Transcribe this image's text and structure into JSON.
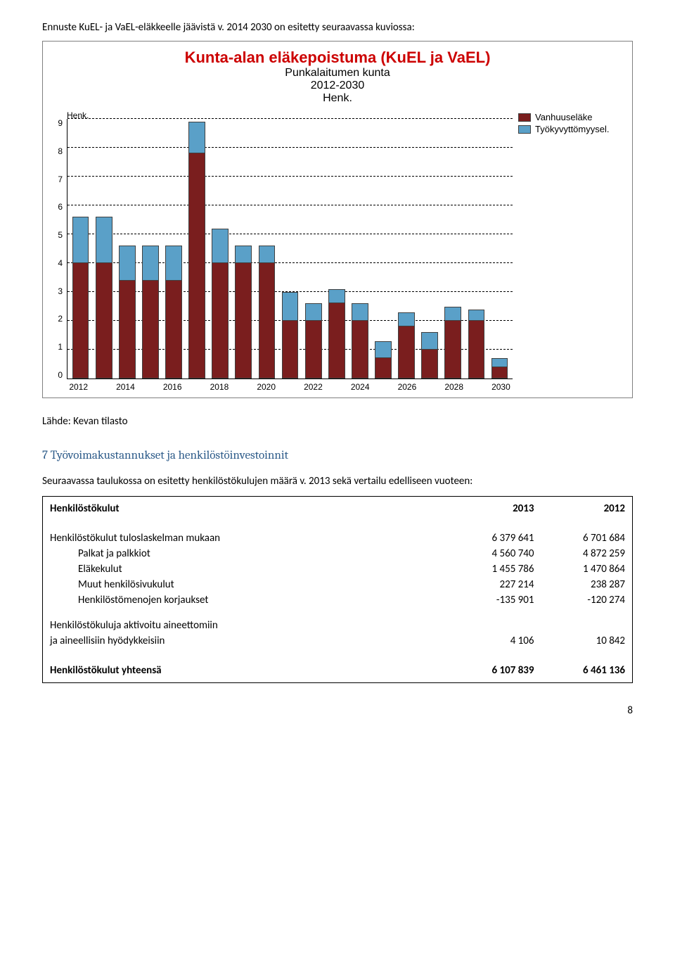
{
  "intro_text": "Ennuste KuEL- ja VaEL-eläkkeelle jäävistä v. 2014 2030 on esitetty seuraavassa kuviossa:",
  "chart": {
    "type": "bar",
    "title_main": "Kunta-alan eläkepoistuma (KuEL ja VaEL)",
    "title_main_color": "#cc0000",
    "title_fontsize": 22,
    "subtitle_1": "Punkalaitumen kunta",
    "subtitle_2": "2012-2030",
    "subtitle_3": "Henk.",
    "y_axis_title": "Henk.",
    "ylim": [
      0,
      9
    ],
    "ytick_step": 1,
    "yticks": [
      9,
      8,
      7,
      6,
      5,
      4,
      3,
      2,
      1,
      0
    ],
    "xticks": [
      "2012",
      "2014",
      "2016",
      "2018",
      "2020",
      "2022",
      "2024",
      "2026",
      "2028",
      "2030"
    ],
    "categories": [
      "2012",
      "2013",
      "2014",
      "2015",
      "2016",
      "2017",
      "2018",
      "2019",
      "2020",
      "2021",
      "2022",
      "2023",
      "2024",
      "2025",
      "2026",
      "2027",
      "2028",
      "2029",
      "2030"
    ],
    "series": [
      {
        "name": "Vanhuuseläke",
        "color": "#7a1e1e",
        "values": [
          4.0,
          4.0,
          3.4,
          3.4,
          3.4,
          7.8,
          4.0,
          4.0,
          4.0,
          2.0,
          2.0,
          2.6,
          2.0,
          0.7,
          1.8,
          1.0,
          2.0,
          2.0,
          0.4
        ]
      },
      {
        "name": "Työkyvyttömyysel.",
        "color": "#5aa0c8",
        "values": [
          1.6,
          1.6,
          1.2,
          1.2,
          1.2,
          1.1,
          1.2,
          0.6,
          0.6,
          1.0,
          0.6,
          0.5,
          0.6,
          0.6,
          0.5,
          0.6,
          0.5,
          0.4,
          0.3
        ]
      }
    ],
    "grid_color": "#000000",
    "background_color": "#ffffff",
    "bar_width": 0.72
  },
  "source_text": "Lähde: Kevan tilasto",
  "section_heading": "7 Työvoimakustannukset ja henkilöstöinvestoinnit",
  "para_text": "Seuraavassa taulukossa on esitetty henkilöstökulujen määrä v. 2013 sekä vertailu edelliseen vuoteen:",
  "table": {
    "header": {
      "label": "Henkilöstökulut",
      "col1": "2013",
      "col2": "2012"
    },
    "rows": [
      {
        "label": "Henkilöstökulut tuloslaskelman mukaan",
        "col1": "6 379 641",
        "col2": "6 701 684",
        "indent": false
      },
      {
        "label": "Palkat ja palkkiot",
        "col1": "4 560 740",
        "col2": "4 872 259",
        "indent": true
      },
      {
        "label": "Eläkekulut",
        "col1": "1 455 786",
        "col2": "1 470 864",
        "indent": true
      },
      {
        "label": "Muut henkilösivukulut",
        "col1": "227 214",
        "col2": "238 287",
        "indent": true
      },
      {
        "label": "Henkilöstömenojen korjaukset",
        "col1": "-135 901",
        "col2": "-120 274",
        "indent": true
      }
    ],
    "row_group2_line1": "Henkilöstökuluja aktivoitu aineettomiin",
    "row_group2": {
      "label": "ja aineellisiin hyödykkeisiin",
      "col1": "4 106",
      "col2": "10 842"
    },
    "footer": {
      "label": "Henkilöstökulut yhteensä",
      "col1": "6 107 839",
      "col2": "6 461 136"
    }
  },
  "page_number": "8"
}
